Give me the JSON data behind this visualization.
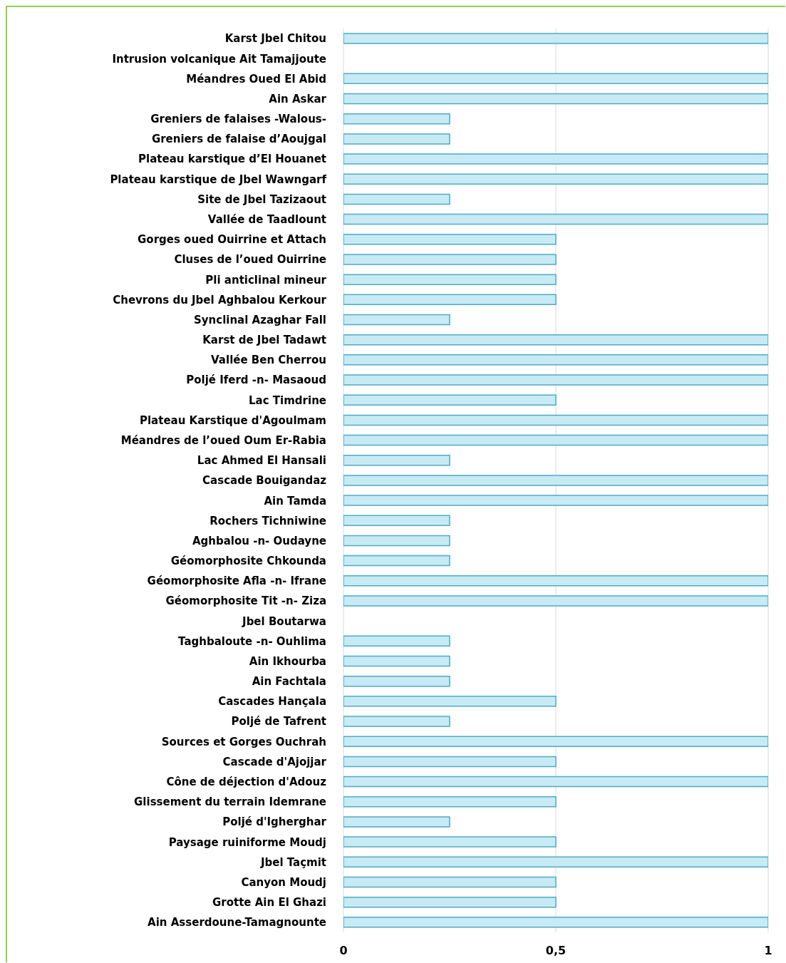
{
  "chart_data": {
    "type": "bar",
    "orientation": "horizontal",
    "categories": [
      "Karst Jbel Chitou",
      "Intrusion volcanique Ait Tamajjoute",
      "Méandres Oued El Abid",
      "Ain Askar",
      "Greniers de falaises -Walous-",
      "Greniers de falaise d’Aoujgal",
      "Plateau karstique d’El Houanet",
      "Plateau karstique de Jbel Wawngarf",
      "Site de Jbel Tazizaout",
      "Vallée de Taadlount",
      "Gorges oued Ouirrine et Attach",
      "Cluses de l’oued Ouirrine",
      "Pli anticlinal mineur",
      "Chevrons du Jbel Aghbalou Kerkour",
      "Synclinal Azaghar Fall",
      "Karst de Jbel Tadawt",
      "Vallée Ben Cherrou",
      "Poljé Iferd -n- Masaoud",
      "Lac Timdrine",
      "Plateau Karstique d'Agoulmam",
      "Méandres de l’oued Oum Er-Rabia",
      "Lac Ahmed El Hansali",
      "Cascade Bouigandaz",
      "Ain Tamda",
      "Rochers Tichniwine",
      "Aghbalou -n- Oudayne",
      "Géomorphosite Chkounda",
      "Géomorphosite Afla -n- Ifrane",
      "Géomorphosite Tit -n- Ziza",
      "Jbel Boutarwa",
      "Taghbaloute -n- Ouhlima",
      "Ain Ikhourba",
      "Ain Fachtala",
      "Cascades Hançala",
      "Poljé de Tafrent",
      "Sources et Gorges Ouchrah",
      "Cascade d'Ajojjar",
      "Cône de déjection d'Adouz",
      "Glissement du terrain Idemrane",
      "Poljé d'Igherghar",
      "Paysage ruiniforme Moudj",
      "Jbel Taçmit",
      "Canyon Moudj",
      "Grotte Ain El Ghazi",
      "Ain Asserdoune-Tamagnounte"
    ],
    "values": [
      1,
      0,
      1,
      1,
      0.25,
      0.25,
      1,
      1,
      0.25,
      1,
      0.5,
      0.5,
      0.5,
      0.5,
      0.25,
      1,
      1,
      1,
      0.5,
      1,
      1,
      0.25,
      1,
      1,
      0.25,
      0.25,
      0.25,
      1,
      1,
      0,
      0.25,
      0.25,
      0.25,
      0.5,
      0.25,
      1,
      0.5,
      1,
      0.5,
      0.25,
      0.5,
      1,
      0.5,
      0.5,
      1
    ],
    "color": "#c8eaf5",
    "xlim": [
      0,
      1
    ],
    "xticks": [
      0,
      {
        "value": 0.5,
        "label": "0,5"
      },
      1
    ],
    "grid": "x"
  }
}
